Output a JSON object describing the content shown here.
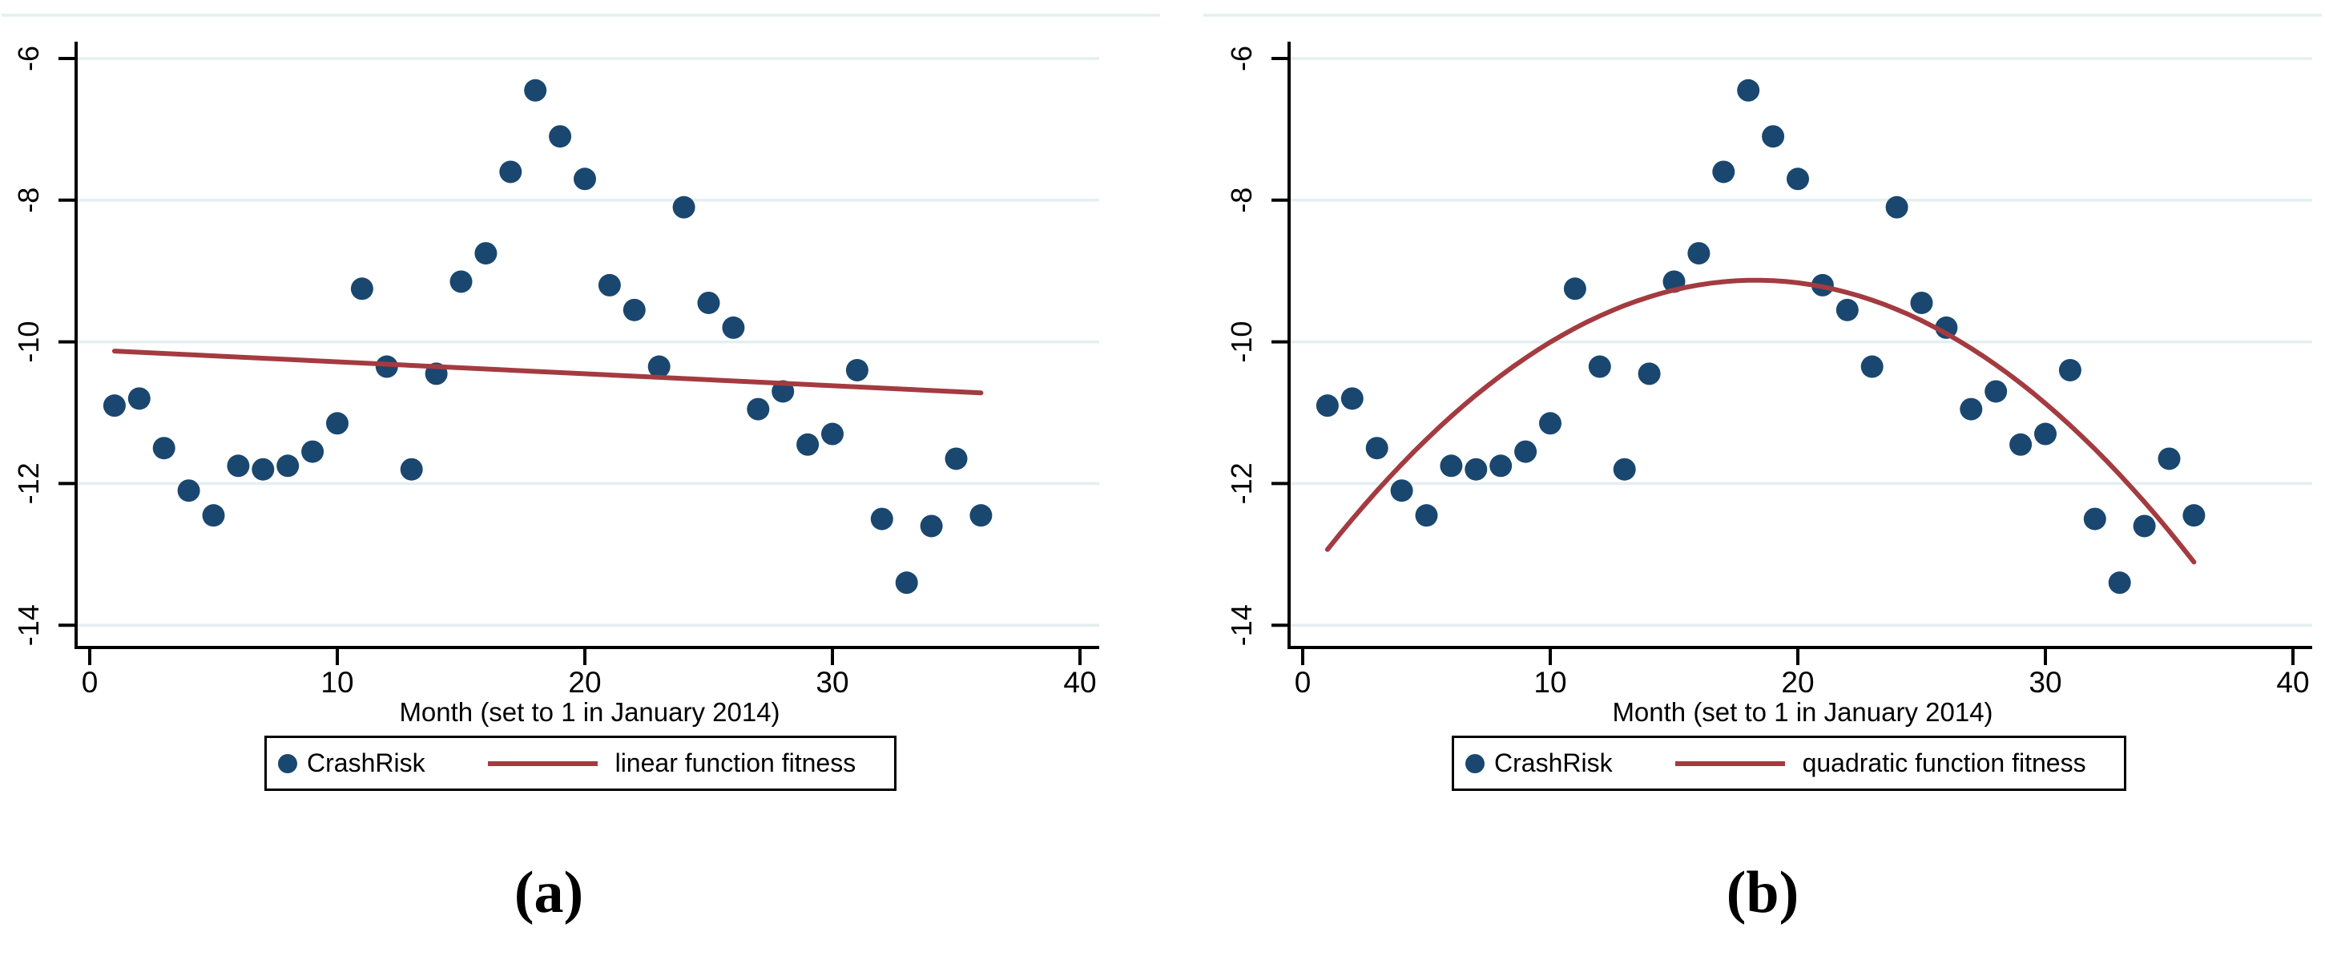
{
  "figure": {
    "panels": [
      {
        "caption": "(a)"
      },
      {
        "caption": "(b)"
      }
    ]
  },
  "chart_data": [
    {
      "type": "scatter",
      "panel": "a",
      "title": "",
      "xlabel": "Month (set to 1 in January 2014)",
      "ylabel": "",
      "xlim": [
        -0.5,
        40.8
      ],
      "ylim": [
        -14.3,
        -5.8
      ],
      "x_ticks": [
        0,
        10,
        20,
        30,
        40
      ],
      "y_ticks": [
        -6,
        -8,
        -10,
        -12,
        -14
      ],
      "grid": "horizontal-light",
      "legend_position": "bottom",
      "colors": {
        "marker": "#1a476f",
        "fit": "#a33b40",
        "grid": "#e4eff1",
        "axis": "#000000"
      },
      "series": [
        {
          "name": "CrashRisk",
          "kind": "scatter",
          "x": [
            1,
            2,
            3,
            4,
            5,
            6,
            7,
            8,
            9,
            10,
            11,
            12,
            13,
            14,
            15,
            16,
            17,
            18,
            19,
            20,
            21,
            22,
            23,
            24,
            25,
            26,
            27,
            28,
            29,
            30,
            31,
            32,
            33,
            34,
            35,
            36
          ],
          "y": [
            -10.9,
            -10.8,
            -11.5,
            -12.1,
            -12.45,
            -11.75,
            -11.8,
            -11.75,
            -11.55,
            -11.15,
            -9.25,
            -10.35,
            -11.8,
            -10.45,
            -9.15,
            -8.75,
            -7.6,
            -6.45,
            -7.1,
            -7.7,
            -9.2,
            -9.55,
            -10.35,
            -8.1,
            -9.45,
            -9.8,
            -10.95,
            -10.7,
            -11.45,
            -11.3,
            -10.4,
            -12.5,
            -13.4,
            -12.6,
            -11.65,
            -12.45
          ]
        },
        {
          "name": "linear function fitness",
          "kind": "fit-line",
          "fit": {
            "form": "linear",
            "x_start": 1,
            "x_end": 36,
            "y_start": -10.13,
            "y_end": -10.72
          }
        }
      ]
    },
    {
      "type": "scatter",
      "panel": "b",
      "title": "",
      "xlabel": "Month (set to 1 in January 2014)",
      "ylabel": "",
      "xlim": [
        -0.5,
        40.8
      ],
      "ylim": [
        -14.3,
        -5.8
      ],
      "x_ticks": [
        0,
        10,
        20,
        30,
        40
      ],
      "y_ticks": [
        -6,
        -8,
        -10,
        -12,
        -14
      ],
      "grid": "horizontal-light",
      "legend_position": "bottom",
      "colors": {
        "marker": "#1a476f",
        "fit": "#a33b40",
        "grid": "#e4eff1",
        "axis": "#000000"
      },
      "series": [
        {
          "name": "CrashRisk",
          "kind": "scatter",
          "x": [
            1,
            2,
            3,
            4,
            5,
            6,
            7,
            8,
            9,
            10,
            11,
            12,
            13,
            14,
            15,
            16,
            17,
            18,
            19,
            20,
            21,
            22,
            23,
            24,
            25,
            26,
            27,
            28,
            29,
            30,
            31,
            32,
            33,
            34,
            35,
            36
          ],
          "y": [
            -10.9,
            -10.8,
            -11.5,
            -12.1,
            -12.45,
            -11.75,
            -11.8,
            -11.75,
            -11.55,
            -11.15,
            -9.25,
            -10.35,
            -11.8,
            -10.45,
            -9.15,
            -8.75,
            -7.6,
            -6.45,
            -7.1,
            -7.7,
            -9.2,
            -9.55,
            -10.35,
            -8.1,
            -9.45,
            -9.8,
            -10.95,
            -10.7,
            -11.45,
            -11.3,
            -10.4,
            -12.5,
            -13.4,
            -12.6,
            -11.65,
            -12.45
          ]
        },
        {
          "name": "quadratic function fitness",
          "kind": "fit-curve",
          "fit": {
            "form": "quadratic",
            "a": -0.0127,
            "h": 18.3,
            "k": -9.13,
            "x_start": 1,
            "x_end": 36
          }
        }
      ]
    }
  ]
}
